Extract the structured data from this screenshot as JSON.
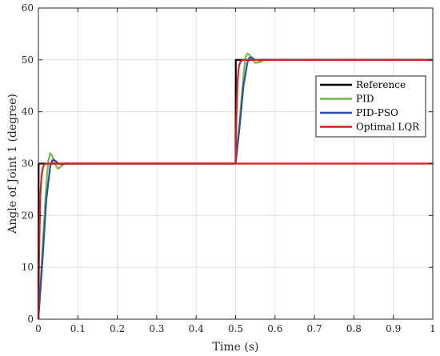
{
  "chart_data": {
    "type": "line",
    "xlabel": "Time (s)",
    "ylabel": "Angle of Joint 1 (degree)",
    "xlim": [
      0,
      1
    ],
    "ylim": [
      0,
      60
    ],
    "xticks": [
      0,
      0.1,
      0.2,
      0.3,
      0.4,
      0.5,
      0.6,
      0.7,
      0.8,
      0.9,
      1
    ],
    "xtick_labels": [
      "0",
      "0.1",
      "0.2",
      "0.3",
      "0.4",
      "0.5",
      "0.6",
      "0.7",
      "0.8",
      "0.9",
      "1"
    ],
    "yticks": [
      0,
      10,
      20,
      30,
      40,
      50,
      60
    ],
    "ytick_labels": [
      "0",
      "10",
      "20",
      "30",
      "40",
      "50",
      "60"
    ],
    "grid": true,
    "legend_position": "right, upper middle",
    "series": [
      {
        "name": "Reference",
        "color": "#000000",
        "x": [
          0,
          0.0005,
          0.5,
          0.5005,
          1.0
        ],
        "y": [
          0,
          30,
          30,
          50,
          50
        ]
      },
      {
        "name": "PID",
        "color": "#6cbf3f",
        "x": [
          0,
          0.01,
          0.02,
          0.025,
          0.03,
          0.035,
          0.04,
          0.045,
          0.05,
          0.055,
          0.06,
          0.07,
          0.08,
          0.1,
          0.5,
          0.51,
          0.52,
          0.525,
          0.53,
          0.535,
          0.54,
          0.545,
          0.55,
          0.56,
          0.57,
          0.58,
          0.6,
          1.0
        ],
        "y": [
          0,
          13,
          26,
          30.5,
          32,
          31.5,
          30.4,
          29.5,
          29.0,
          29.3,
          29.7,
          30.0,
          30.0,
          30.0,
          30,
          38,
          47,
          50.5,
          51.2,
          51.0,
          50.3,
          49.8,
          49.4,
          49.5,
          49.9,
          50.0,
          50.0,
          50.0
        ]
      },
      {
        "name": "PID-PSO",
        "color": "#2b4fa8",
        "x": [
          0,
          0.01,
          0.02,
          0.03,
          0.035,
          0.04,
          0.045,
          0.05,
          0.06,
          0.07,
          0.1,
          0.5,
          0.51,
          0.52,
          0.53,
          0.535,
          0.54,
          0.545,
          0.55,
          0.56,
          0.57,
          0.6,
          1.0
        ],
        "y": [
          0,
          11,
          23,
          29.5,
          30.6,
          30.7,
          30.4,
          30.0,
          29.9,
          30.0,
          30.0,
          30,
          37,
          45,
          49.5,
          50.4,
          50.5,
          50.2,
          50.0,
          49.9,
          50.0,
          50.0,
          50.0
        ]
      },
      {
        "name": "Optimal LQR",
        "color": "#e41a1c",
        "x": [
          0,
          0.002,
          0.005,
          0.008,
          0.012,
          0.016,
          0.02,
          0.025,
          0.03,
          1.0
        ],
        "y": [
          0,
          14,
          24,
          27.8,
          29.4,
          29.9,
          30.0,
          30.0,
          30.0,
          30.0
        ],
        "x2": [
          0.5,
          0.502,
          0.505,
          0.508,
          0.512,
          0.516,
          0.52,
          0.525,
          0.53,
          1.0
        ],
        "y2": [
          30,
          39,
          46,
          48.6,
          49.6,
          49.9,
          50.0,
          50.0,
          50.0,
          50.0
        ]
      }
    ]
  }
}
